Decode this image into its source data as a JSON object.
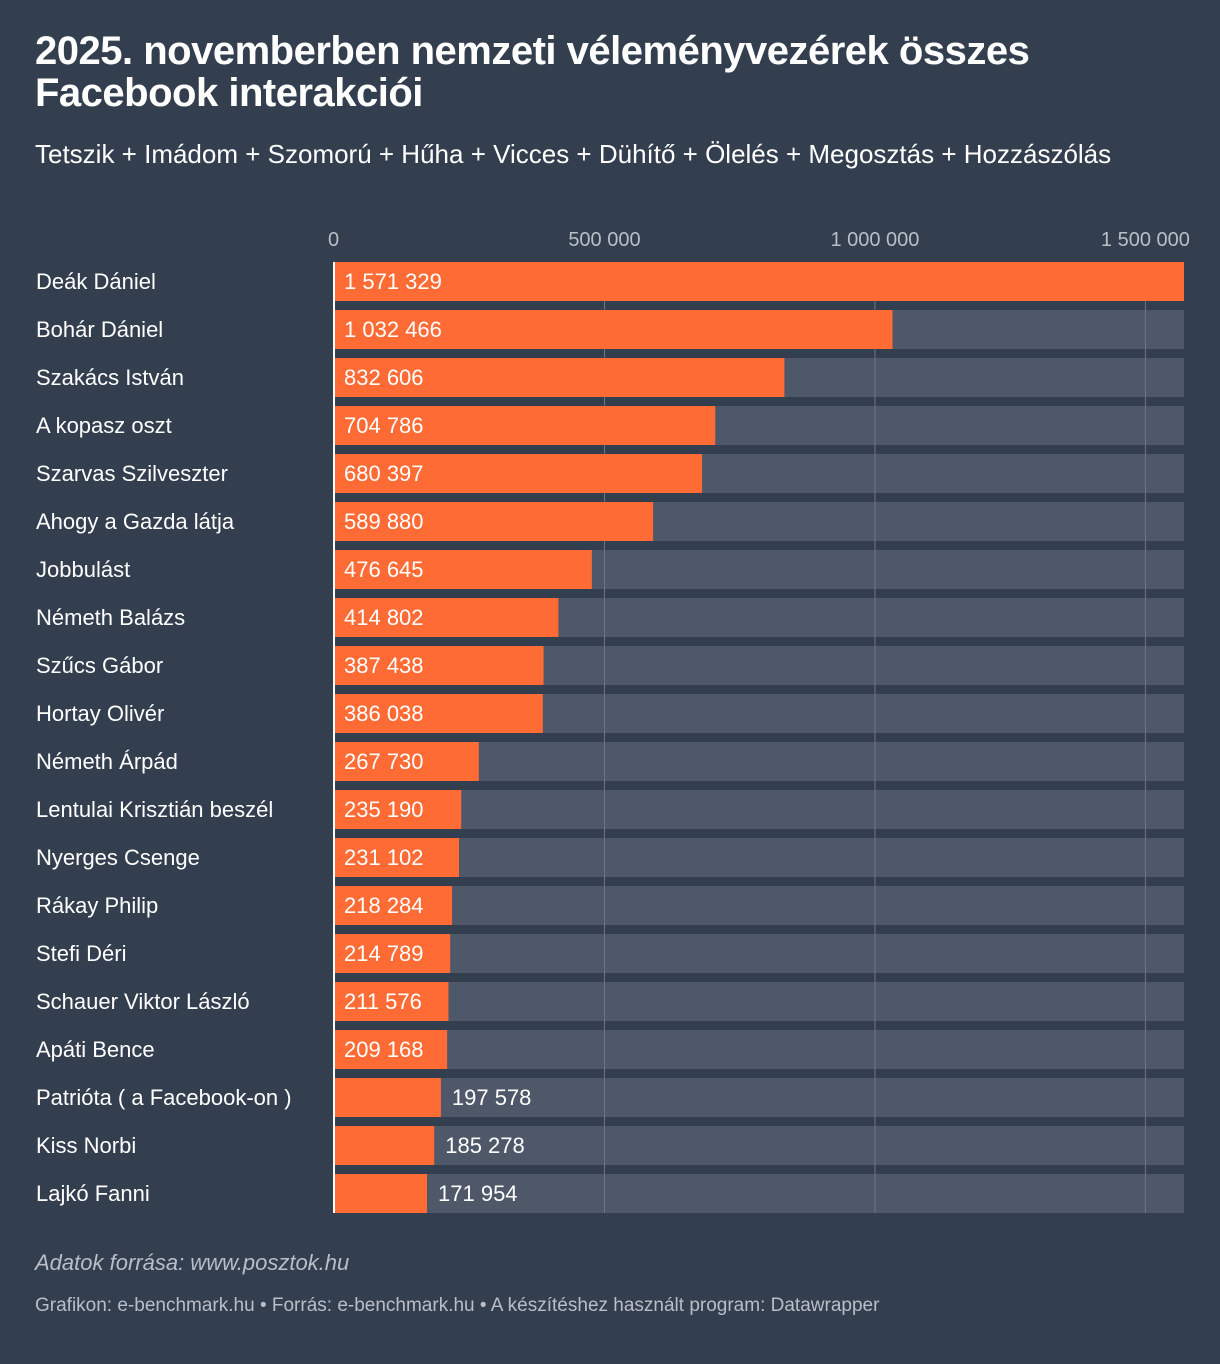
{
  "title": "2025. novemberben nemzeti véleményvezérek összes Facebook interakciói",
  "subtitle": "Tetszik + Imádom + Szomorú + Hűha + Vicces + Dühítő + Ölelés + Megosztás + Hozzászólás",
  "note": "Adatok forrása: www.posztok.hu",
  "footer": "Grafikon: e-benchmark.hu • Forrás: e-benchmark.hu • A készítéshez használt program: Datawrapper",
  "colors": {
    "background": "#333e4f",
    "bar": "#ff6b35",
    "track": "#4e5869",
    "text": "#ffffff",
    "muted": "#b9bec7"
  },
  "chart_data": {
    "type": "bar",
    "orientation": "horizontal",
    "title": "2025. novemberben nemzeti véleményvezérek összes Facebook interakciói",
    "xlim": [
      0,
      1571329
    ],
    "xticks": [
      0,
      500000,
      1000000,
      1500000
    ],
    "xtick_labels": [
      "0",
      "500 000",
      "1 000 000",
      "1 500 000"
    ],
    "tick_position": "top",
    "categories": [
      "Deák Dániel",
      "Bohár Dániel",
      "Szakács István",
      "A kopasz oszt",
      "Szarvas Szilveszter",
      "Ahogy a Gazda látja",
      "Jobbulást",
      "Németh Balázs",
      "Szűcs Gábor",
      "Hortay Olivér",
      "Németh Árpád",
      "Lentulai Krisztián beszél",
      "Nyerges Csenge",
      "Rákay Philip",
      "Stefi Déri",
      "Schauer Viktor László",
      "Apáti Bence",
      "Patrióta ( a Facebook-on )",
      "Kiss Norbi",
      "Lajkó Fanni"
    ],
    "values": [
      1571329,
      1032466,
      832606,
      704786,
      680397,
      589880,
      476645,
      414802,
      387438,
      386038,
      267730,
      235190,
      231102,
      218284,
      214789,
      211576,
      209168,
      197578,
      185278,
      171954
    ],
    "value_labels": [
      "1 571 329",
      "1 032 466",
      "832 606",
      "704 786",
      "680 397",
      "589 880",
      "476 645",
      "414 802",
      "387 438",
      "386 038",
      "267 730",
      "235 190",
      "231 102",
      "218 284",
      "214 789",
      "211 576",
      "209 168",
      "197 578",
      "185 278",
      "171 954"
    ]
  }
}
